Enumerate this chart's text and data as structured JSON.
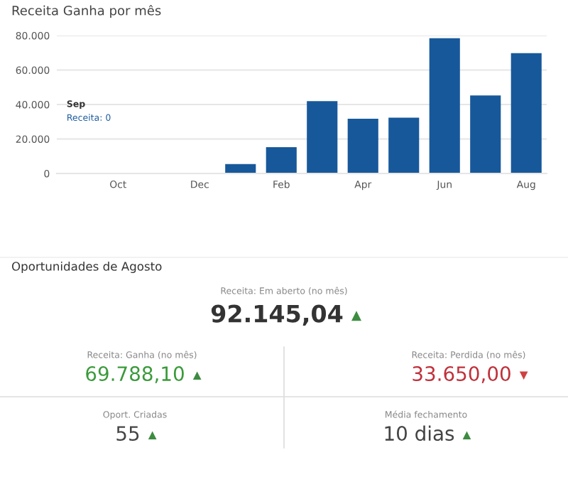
{
  "chart_data": [
    {
      "type": "bar",
      "title": "Receita Ganha por mês",
      "categories": [
        null,
        "Oct",
        null,
        "Dec",
        null,
        "Feb",
        null,
        "Apr",
        null,
        "Jun",
        null,
        "Aug"
      ],
      "values": [
        0,
        0,
        0,
        0,
        5500,
        15300,
        42000,
        31800,
        32400,
        78500,
        45300,
        69788
      ],
      "color": "#17589a",
      "ylim": [
        0,
        80000
      ],
      "yticks": [
        0,
        {
          "value": 20000,
          "label": "20.000"
        },
        {
          "value": 40000,
          "label": "40.000"
        },
        {
          "value": 60000,
          "label": "60.000"
        },
        {
          "value": 80000,
          "label": "80.000"
        }
      ],
      "grid": "y",
      "annotations": [
        "Sep",
        "Receita: 0"
      ]
    },
    {
      "type": "other",
      "title": "Oportunidades de Agosto",
      "annotations": [
        "Receita: Em aberto (no mês)",
        "92.145,04",
        "▲",
        "Receita: Ganha (no mês)",
        "69.788,10",
        "▲",
        "Receita: Perdida (no mês)",
        "33.650,00",
        "▼",
        "Oport. Criadas",
        "55",
        "▲",
        "Média fechamento",
        "10 dias",
        "▲"
      ],
      "colors": [
        "#888888",
        "#333333",
        "#3d8c40",
        "#888888",
        "#3a9a3a",
        "#3d8c40",
        "#888888",
        "#c0303a",
        "#d04040",
        "#888888",
        "#444444",
        "#3d8c40",
        "#888888",
        "#444444",
        "#3d8c40"
      ]
    }
  ]
}
